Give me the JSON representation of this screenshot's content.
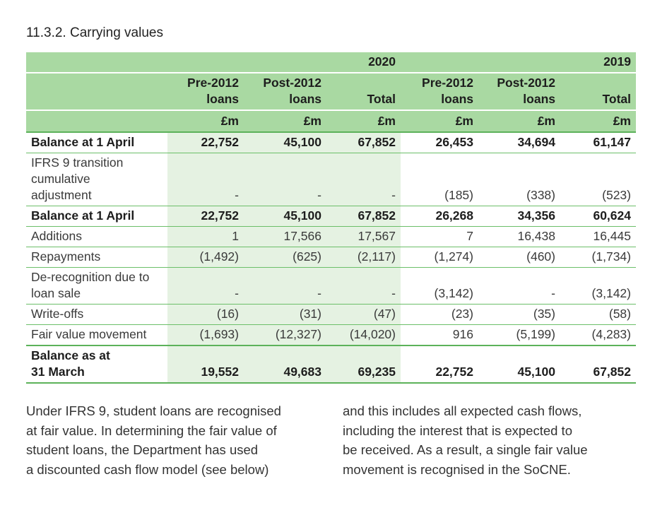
{
  "title": "11.3.2.   Carrying values",
  "table": {
    "years": [
      "2020",
      "2019"
    ],
    "columns": [
      [
        "Pre-2012",
        "loans"
      ],
      [
        "Post-2012",
        "loans"
      ],
      [
        "Total"
      ],
      [
        "Pre-2012",
        "loans"
      ],
      [
        "Post-2012",
        "loans"
      ],
      [
        "Total"
      ]
    ],
    "units": [
      "£m",
      "£m",
      "£m",
      "£m",
      "£m",
      "£m"
    ],
    "rows": [
      {
        "label": [
          "Balance at 1 April"
        ],
        "bold": true,
        "values": [
          "22,752",
          "45,100",
          "67,852",
          "26,453",
          "34,694",
          "61,147"
        ]
      },
      {
        "label": [
          "IFRS 9 transition",
          "cumulative",
          "adjustment"
        ],
        "bold": false,
        "values": [
          "-",
          "-",
          "-",
          "(185)",
          "(338)",
          "(523)"
        ]
      },
      {
        "label": [
          "Balance at 1 April"
        ],
        "bold": true,
        "values": [
          "22,752",
          "45,100",
          "67,852",
          "26,268",
          "34,356",
          "60,624"
        ]
      },
      {
        "label": [
          "Additions"
        ],
        "bold": false,
        "values": [
          "1",
          "17,566",
          "17,567",
          "7",
          "16,438",
          "16,445"
        ]
      },
      {
        "label": [
          "Repayments"
        ],
        "bold": false,
        "values": [
          "(1,492)",
          "(625)",
          "(2,117)",
          "(1,274)",
          "(460)",
          "(1,734)"
        ]
      },
      {
        "label": [
          "De-recognition due to",
          "loan sale"
        ],
        "bold": false,
        "values": [
          "-",
          "-",
          "-",
          "(3,142)",
          "-",
          "(3,142)"
        ]
      },
      {
        "label": [
          "Write-offs"
        ],
        "bold": false,
        "values": [
          "(16)",
          "(31)",
          "(47)",
          "(23)",
          "(35)",
          "(58)"
        ]
      },
      {
        "label": [
          "Fair value movement"
        ],
        "bold": false,
        "values": [
          "(1,693)",
          "(12,327)",
          "(14,020)",
          "916",
          "(5,199)",
          "(4,283)"
        ]
      },
      {
        "label": [
          "Balance as at",
          "31 March"
        ],
        "bold": true,
        "values": [
          "19,552",
          "49,683",
          "69,235",
          "22,752",
          "45,100",
          "67,852"
        ]
      }
    ]
  },
  "text": [
    [
      "Under IFRS 9, student loans are recognised",
      "at fair value. In determining the fair value of",
      "student loans, the Department has used",
      "a discounted cash flow model (see below)"
    ],
    [
      "and this includes all expected cash flows,",
      "including the interest that is expected to",
      "be received. As a result, a single fair value",
      "movement is recognised in the SoCNE."
    ]
  ]
}
